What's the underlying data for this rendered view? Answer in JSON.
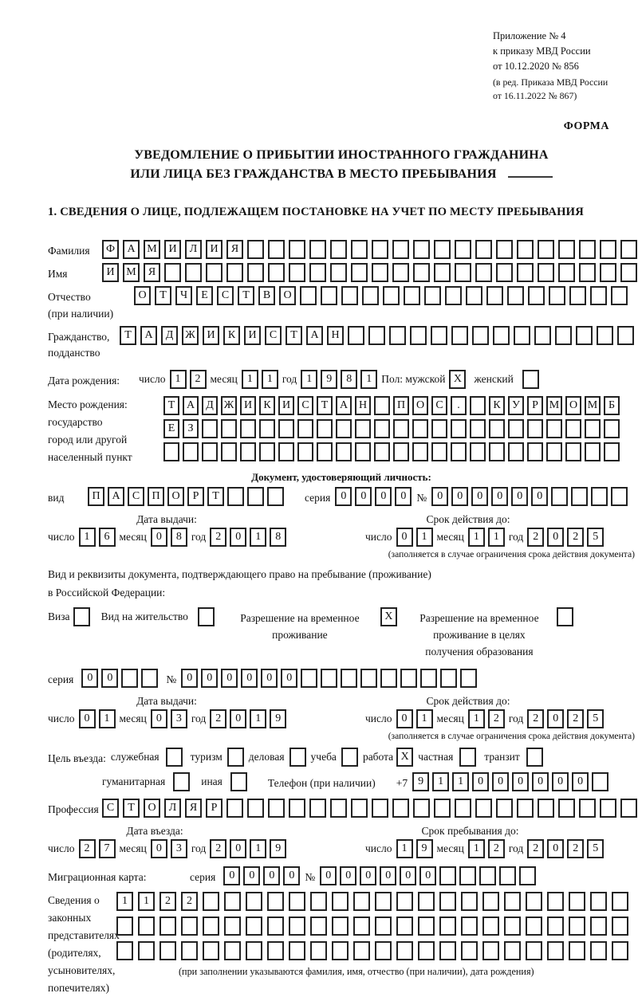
{
  "header": {
    "line1": "Приложение № 4",
    "line2": "к приказу МВД России",
    "line3": "от 10.12.2020 № 856",
    "line4": "(в ред. Приказа МВД России",
    "line5": "от 16.11.2022 № 867)",
    "form_label": "ФОРМА"
  },
  "title": {
    "line1": "УВЕДОМЛЕНИЕ О ПРИБЫТИИ ИНОСТРАННОГО ГРАЖДАНИНА",
    "line2": "ИЛИ ЛИЦА БЕЗ ГРАЖДАНСТВА В МЕСТО ПРЕБЫВАНИЯ"
  },
  "section1": {
    "heading": "1. СВЕДЕНИЯ О ЛИЦЕ, ПОДЛЕЖАЩЕМ ПОСТАНОВКЕ НА УЧЕТ ПО МЕСТУ ПРЕБЫВАНИЯ"
  },
  "surname": {
    "label": "Фамилия",
    "cells": {
      "t": "ФАМИЛИЯ",
      "n": 26
    }
  },
  "firstname": {
    "label": "Имя",
    "cells": {
      "t": "ИМЯ",
      "n": 26
    }
  },
  "patronymic": {
    "label_line1": "Отчество",
    "label_line2": "(при наличии)",
    "cells": {
      "t": "ОТЧЕСТВО",
      "n": 24
    }
  },
  "citizenship": {
    "label_line1": "Гражданство,",
    "label_line2": "подданство",
    "cells": {
      "t": "ТАДЖИКИСТАН",
      "n": 25
    }
  },
  "birth_date": {
    "label": "Дата рождения:",
    "day_label": "число",
    "day": {
      "t": "12",
      "n": 2
    },
    "month_label": "месяц",
    "month": {
      "t": "11",
      "n": 2
    },
    "year_label": "год",
    "year": {
      "t": "1981",
      "n": 4
    },
    "sex_label": "Пол: мужской",
    "male_box": {
      "t": "X",
      "n": 1
    },
    "female_label": "женский",
    "female_box": {
      "t": "",
      "n": 1
    }
  },
  "birth_place": {
    "label_line1": "Место рождения:",
    "label_line2": "государство",
    "label_line3": "город или другой",
    "label_line4": "населенный пункт",
    "row1": {
      "t": "ТАДЖИКИСТАН ПОС. КУРМОМБ",
      "n": 24
    },
    "row2": {
      "t": "ЕЗ",
      "n": 24
    },
    "row3": {
      "t": "",
      "n": 24
    }
  },
  "identity_doc": {
    "heading": "Документ, удостоверяющий личность:",
    "type_label": "вид",
    "type_cells": {
      "t": "ПАСПОРТ",
      "n": 10
    },
    "series_label": "серия",
    "series_cells": {
      "t": "0000",
      "n": 4
    },
    "number_label": "№",
    "number_cells": {
      "t": "000000",
      "n": 10
    },
    "issue_header": "Дата выдачи:",
    "issue_day_label": "число",
    "issue_day": {
      "t": "16",
      "n": 2
    },
    "issue_month_label": "месяц",
    "issue_month": {
      "t": "08",
      "n": 2
    },
    "issue_year_label": "год",
    "issue_year": {
      "t": "2018",
      "n": 4
    },
    "expiry_header": "Срок действия до:",
    "expiry_day_label": "число",
    "expiry_day": {
      "t": "01",
      "n": 2
    },
    "expiry_month_label": "месяц",
    "expiry_month": {
      "t": "11",
      "n": 2
    },
    "expiry_year_label": "год",
    "expiry_year": {
      "t": "2025",
      "n": 4
    },
    "expiry_note": "(заполняется в случае ограничения срока действия документа)"
  },
  "residence_doc": {
    "line1": "Вид и реквизиты документа, подтверждающего право на пребывание (проживание)",
    "line2": "в Российской Федерации:",
    "opt1_label": "Виза",
    "opt1_box": {
      "t": "",
      "n": 1
    },
    "opt2_label": "Вид на жительство",
    "opt2_box": {
      "t": "",
      "n": 1
    },
    "opt3_label": "Разрешение на временное проживание",
    "opt3_box": {
      "t": "X",
      "n": 1
    },
    "opt4_label": "Разрешение на временное проживание в целях получения образования",
    "opt4_box": {
      "t": "",
      "n": 1
    },
    "series_label": "серия",
    "series_cells": {
      "t": "00",
      "n": 4
    },
    "number_label": "№",
    "number_cells": {
      "t": "000000",
      "n": 15
    },
    "issue_header": "Дата выдачи:",
    "issue_day_label": "число",
    "issue_day": {
      "t": "01",
      "n": 2
    },
    "issue_month_label": "месяц",
    "issue_month": {
      "t": "03",
      "n": 2
    },
    "issue_year_label": "год",
    "issue_year": {
      "t": "2019",
      "n": 4
    },
    "expiry_header": "Срок действия до:",
    "expiry_day_label": "число",
    "expiry_day": {
      "t": "01",
      "n": 2
    },
    "expiry_month_label": "месяц",
    "expiry_month": {
      "t": "12",
      "n": 2
    },
    "expiry_year_label": "год",
    "expiry_year": {
      "t": "2025",
      "n": 4
    },
    "expiry_note": "(заполняется в случае ограничения срока действия документа)"
  },
  "purpose": {
    "label": "Цель въезда:",
    "options_row1": [
      {
        "label": "служебная",
        "box": {
          "t": "",
          "n": 1
        }
      },
      {
        "label": "туризм",
        "box": {
          "t": "",
          "n": 1
        }
      },
      {
        "label": "деловая",
        "box": {
          "t": "",
          "n": 1
        }
      },
      {
        "label": "учеба",
        "box": {
          "t": "",
          "n": 1
        }
      },
      {
        "label": "работа",
        "box": {
          "t": "X",
          "n": 1
        }
      },
      {
        "label": "частная",
        "box": {
          "t": "",
          "n": 1
        }
      },
      {
        "label": "транзит",
        "box": {
          "t": "",
          "n": 1
        }
      }
    ],
    "opt_hum_label": "гуманитарная",
    "opt_hum_box": {
      "t": "",
      "n": 1
    },
    "opt_other_label": "иная",
    "opt_other_box": {
      "t": "",
      "n": 1
    },
    "phone_label": "Телефон (при наличии)",
    "phone_prefix": "+7",
    "phone_cells": {
      "t": "911000000",
      "n": 10
    }
  },
  "profession": {
    "label": "Профессия",
    "cells": {
      "t": "СТОЛЯР",
      "n": 26
    }
  },
  "entry": {
    "entry_header": "Дата въезда:",
    "entry_day_label": "число",
    "entry_day": {
      "t": "27",
      "n": 2
    },
    "entry_month_label": "месяц",
    "entry_month": {
      "t": "03",
      "n": 2
    },
    "entry_year_label": "год",
    "entry_year": {
      "t": "2019",
      "n": 4
    },
    "stay_header": "Срок пребывания до:",
    "stay_day_label": "число",
    "stay_day": {
      "t": "19",
      "n": 2
    },
    "stay_month_label": "месяц",
    "stay_month": {
      "t": "12",
      "n": 2
    },
    "stay_year_label": "год",
    "stay_year": {
      "t": "2025",
      "n": 4
    }
  },
  "migration_card": {
    "label": "Миграционная карта:",
    "series_label": "серия",
    "series_cells": {
      "t": "0000",
      "n": 4
    },
    "number_label": "№",
    "number_cells": {
      "t": "000000",
      "n": 11
    }
  },
  "representatives": {
    "label_lines": [
      "Сведения о",
      "законных",
      "представителях",
      "(родителях,",
      "усыновителях,",
      "попечителях)"
    ],
    "row1": {
      "t": "1122",
      "n": 24
    },
    "row2": {
      "t": "",
      "n": 24
    },
    "row3": {
      "t": "",
      "n": 24
    },
    "note": "(при заполнении указываются фамилия, имя, отчество (при наличии), дата рождения)"
  }
}
